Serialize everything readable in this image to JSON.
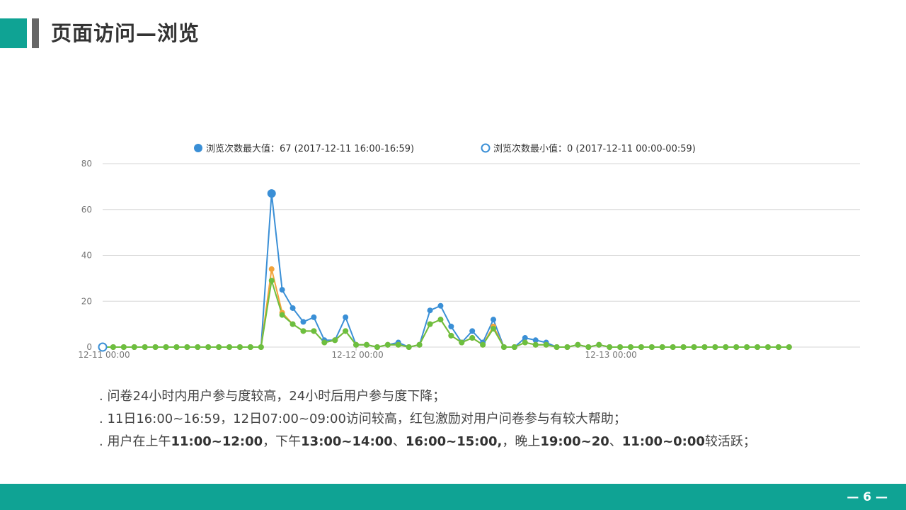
{
  "header": {
    "title": "页面访问—浏览"
  },
  "colors": {
    "teal": "#0fa394",
    "max_series": "#3a8fd6",
    "mid_series": "#f2a33a",
    "min_series": "#6cbf3f",
    "grid": "#d6d6d6"
  },
  "chart_data": {
    "type": "line",
    "legend": [
      {
        "label": "浏览次数最大值：67 (2017-12-11 16:00-16:59)",
        "marker": "filled-circle",
        "color": "#3a8fd6"
      },
      {
        "label": "浏览次数最小值：0 (2017-12-11 00:00-00:59)",
        "marker": "hollow-circle",
        "color": "#3a8fd6"
      }
    ],
    "legend_position": "top-center",
    "ylim": [
      0,
      80
    ],
    "yticks": [
      "0",
      "20",
      "40",
      "60",
      "80"
    ],
    "xticks": [
      {
        "label": "12-11 00:00",
        "hour": 0
      },
      {
        "label": "12-12 00:00",
        "hour": 24
      },
      {
        "label": "12-13 00:00",
        "hour": 48
      }
    ],
    "grid": true,
    "series": [
      {
        "color": "#3a8fd6",
        "values": [
          0,
          0,
          0,
          0,
          0,
          0,
          0,
          0,
          0,
          0,
          0,
          0,
          0,
          0,
          0,
          0,
          67,
          25,
          17,
          11,
          13,
          3,
          3,
          13,
          1,
          1,
          0,
          1,
          2,
          0,
          1,
          16,
          18,
          9,
          2,
          7,
          2,
          12,
          0,
          0,
          4,
          3,
          2,
          0,
          0,
          1,
          0,
          1,
          0,
          0,
          0,
          0,
          0,
          0,
          0,
          0,
          0,
          0,
          0,
          0,
          0,
          0,
          0,
          0,
          0,
          0
        ]
      },
      {
        "color": "#f2a33a",
        "values": [
          0,
          0,
          0,
          0,
          0,
          0,
          0,
          0,
          0,
          0,
          0,
          0,
          0,
          0,
          0,
          0,
          34,
          15,
          10,
          7,
          7,
          2,
          3,
          7,
          1,
          1,
          0,
          1,
          1,
          0,
          1,
          10,
          12,
          5,
          2,
          4,
          1,
          9,
          0,
          0,
          2,
          1,
          1,
          0,
          0,
          1,
          0,
          1,
          0,
          0,
          0,
          0,
          0,
          0,
          0,
          0,
          0,
          0,
          0,
          0,
          0,
          0,
          0,
          0,
          0,
          0
        ]
      },
      {
        "color": "#6cbf3f",
        "values": [
          0,
          0,
          0,
          0,
          0,
          0,
          0,
          0,
          0,
          0,
          0,
          0,
          0,
          0,
          0,
          0,
          29,
          14,
          10,
          7,
          7,
          2,
          3,
          7,
          1,
          1,
          0,
          1,
          1,
          0,
          1,
          10,
          12,
          5,
          2,
          4,
          1,
          8,
          0,
          0,
          2,
          1,
          1,
          0,
          0,
          1,
          0,
          1,
          0,
          0,
          0,
          0,
          0,
          0,
          0,
          0,
          0,
          0,
          0,
          0,
          0,
          0,
          0,
          0,
          0,
          0
        ]
      }
    ],
    "highlight": {
      "max_hour": 16,
      "max_value": 67,
      "min_hour": 0,
      "min_value": 0
    }
  },
  "notes": [
    [
      {
        "text": ". 问卷24小时内用户参与度较高，24小时后用户参与度下降；",
        "bold": false
      }
    ],
    [
      {
        "text": ". 11日16:00~16:59，12日07:00~09:00访问较高，红包激励对用户问卷参与有较大帮助；",
        "bold": false
      }
    ],
    [
      {
        "text": ". 用户在上午",
        "bold": false
      },
      {
        "text": "11:00~12:00",
        "bold": true
      },
      {
        "text": "，下午",
        "bold": false
      },
      {
        "text": "13:00~14:00",
        "bold": true
      },
      {
        "text": "、",
        "bold": false
      },
      {
        "text": "16:00~15:00,",
        "bold": true
      },
      {
        "text": "，晚上",
        "bold": false
      },
      {
        "text": "19:00~20",
        "bold": true
      },
      {
        "text": "、",
        "bold": false
      },
      {
        "text": "11:00~0:00",
        "bold": true
      },
      {
        "text": "较活跃；",
        "bold": false
      }
    ]
  ],
  "footer": {
    "page": "— 6 —"
  }
}
